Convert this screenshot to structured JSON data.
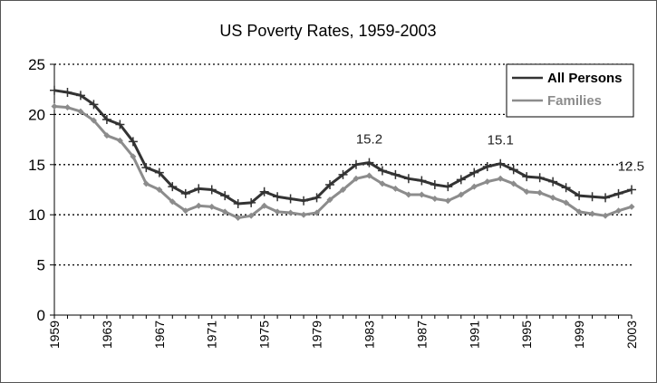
{
  "chart_data": {
    "type": "line",
    "title": "US Poverty Rates, 1959-2003",
    "xlabel": "",
    "ylabel": "",
    "xlim": [
      1959,
      2003
    ],
    "ylim": [
      0,
      25
    ],
    "y_ticks": [
      0,
      5,
      10,
      15,
      20,
      25
    ],
    "x_ticks": [
      1959,
      1963,
      1967,
      1971,
      1975,
      1979,
      1983,
      1987,
      1991,
      1995,
      1999,
      2003
    ],
    "grid": "horizontal dotted",
    "legend_position": "top-right",
    "x": [
      1959,
      1960,
      1961,
      1962,
      1963,
      1964,
      1965,
      1966,
      1967,
      1968,
      1969,
      1970,
      1971,
      1972,
      1973,
      1974,
      1975,
      1976,
      1977,
      1978,
      1979,
      1980,
      1981,
      1982,
      1983,
      1984,
      1985,
      1986,
      1987,
      1988,
      1989,
      1990,
      1991,
      1992,
      1993,
      1994,
      1995,
      1996,
      1997,
      1998,
      1999,
      2000,
      2001,
      2002,
      2003
    ],
    "series": [
      {
        "name": "All Persons",
        "color": "#333333",
        "values": [
          22.4,
          22.2,
          21.9,
          21.0,
          19.5,
          19.0,
          17.3,
          14.7,
          14.2,
          12.8,
          12.1,
          12.6,
          12.5,
          11.9,
          11.1,
          11.2,
          12.3,
          11.8,
          11.6,
          11.4,
          11.7,
          13.0,
          14.0,
          15.0,
          15.2,
          14.4,
          14.0,
          13.6,
          13.4,
          13.0,
          12.8,
          13.5,
          14.2,
          14.8,
          15.1,
          14.5,
          13.8,
          13.7,
          13.3,
          12.7,
          11.9,
          11.8,
          11.7,
          12.1,
          12.5
        ]
      },
      {
        "name": "Families",
        "color": "#8c8c8c",
        "values": [
          20.8,
          20.7,
          20.3,
          19.4,
          17.9,
          17.4,
          15.8,
          13.1,
          12.5,
          11.3,
          10.4,
          10.9,
          10.8,
          10.3,
          9.7,
          9.9,
          10.9,
          10.3,
          10.2,
          10.0,
          10.2,
          11.5,
          12.5,
          13.6,
          13.9,
          13.1,
          12.6,
          12.0,
          12.0,
          11.6,
          11.4,
          12.0,
          12.8,
          13.3,
          13.6,
          13.1,
          12.3,
          12.2,
          11.7,
          11.2,
          10.3,
          10.1,
          9.9,
          10.4,
          10.8
        ]
      }
    ],
    "annotations": [
      {
        "text": "15.2",
        "x": 1983,
        "y": 15.2
      },
      {
        "text": "15.1",
        "x": 1993,
        "y": 15.1
      },
      {
        "text": "12.5",
        "x": 2003,
        "y": 12.5
      }
    ]
  }
}
